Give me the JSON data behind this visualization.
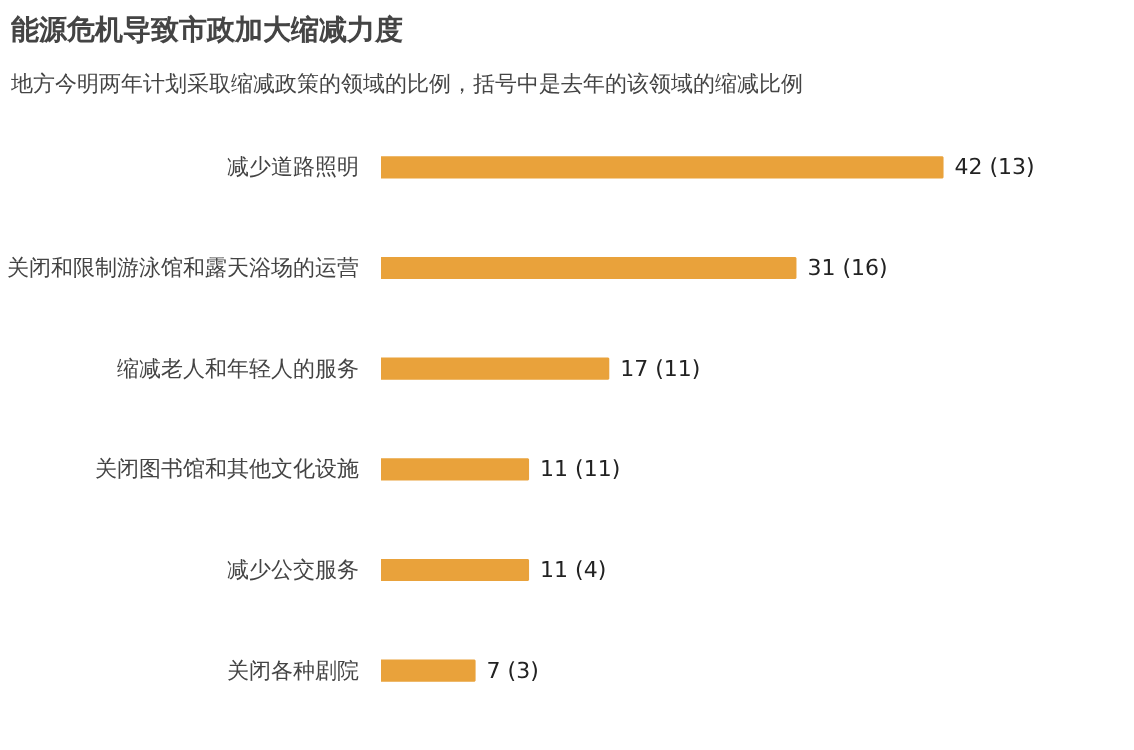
{
  "chart_data": {
    "type": "bar",
    "orientation": "horizontal",
    "title": "能源危机导致市政加大缩减力度",
    "subtitle": "地方今明两年计划采取缩减政策的领域的比例，括号中是去年的该领域的缩减比例",
    "categories": [
      "减少道路照明",
      "关闭和限制游泳馆和露天浴场的运营",
      "缩减老人和年轻人的服务",
      "关闭图书馆和其他文化设施",
      "减少公交服务",
      "关闭各种剧院"
    ],
    "values": [
      42,
      31,
      17,
      11,
      11,
      7
    ],
    "value_labels": [
      "42 (13)",
      "31 (16)",
      "17 (11)",
      "11 (11)",
      "11 (4)",
      "7 (3)"
    ],
    "color": "#e9a23b",
    "grid": false
  }
}
